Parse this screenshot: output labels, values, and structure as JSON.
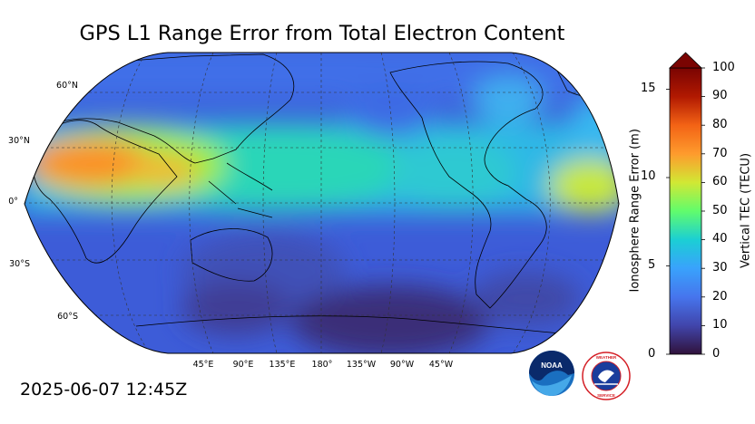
{
  "title": "GPS L1 Range Error from Total Electron Content",
  "timestamp": "2025-06-07 12:45Z",
  "map": {
    "latitude_labels": [
      "60°N",
      "30°N",
      "0°",
      "30°S",
      "60°S"
    ],
    "longitude_labels": [
      "45°E",
      "90°E",
      "135°E",
      "180°",
      "135°W",
      "90°W",
      "45°W"
    ]
  },
  "colorbar": {
    "left_axis_label": "Ionosphere Range Error (m)",
    "left_ticks": [
      "0",
      "5",
      "10",
      "15"
    ],
    "right_axis_label": "Vertical TEC (TECU)",
    "right_ticks": [
      "0",
      "10",
      "20",
      "30",
      "40",
      "50",
      "60",
      "70",
      "80",
      "90",
      "100"
    ],
    "tec_range": [
      0,
      100
    ],
    "range_error_max_m": 16.2,
    "extend": "max"
  },
  "colors": {
    "colormap": [
      "#30123b",
      "#4145ab",
      "#4675ed",
      "#39a2fc",
      "#1bcfd4",
      "#24eca6",
      "#61fc6c",
      "#a4fc3b",
      "#d1e834",
      "#f3c63a",
      "#fe9b2d",
      "#f36315",
      "#d93806",
      "#b11901",
      "#7a0402"
    ]
  },
  "logos": {
    "noaa_text": "NOAA",
    "nws_text": "NATIONAL WEATHER SERVICE"
  }
}
